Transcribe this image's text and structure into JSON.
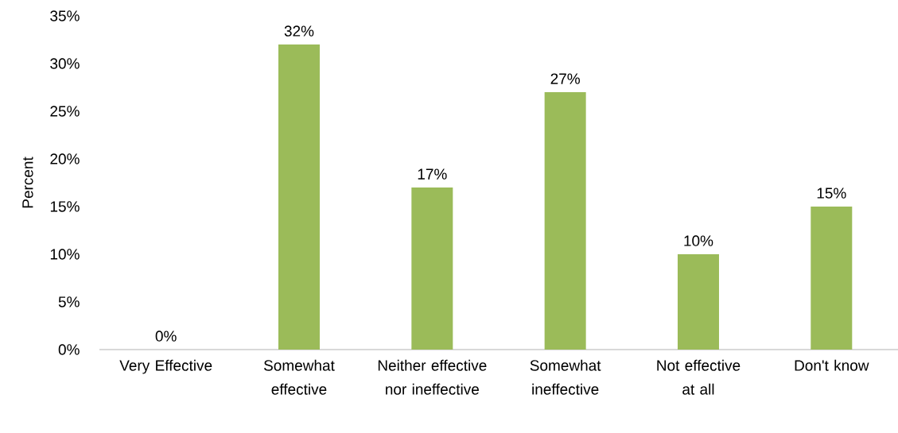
{
  "chart_data": {
    "type": "bar",
    "ylabel": "Percent",
    "categories": [
      "Very Effective",
      "Somewhat effective",
      "Neither effective nor ineffective",
      "Somewhat ineffective",
      "Not effective at all",
      "Don't know"
    ],
    "values": [
      0,
      32,
      17,
      27,
      10,
      15
    ],
    "value_labels": [
      "0%",
      "32%",
      "17%",
      "27%",
      "10%",
      "15%"
    ],
    "color": "#9bbb59",
    "ylim": [
      0,
      35
    ],
    "yticks": [
      {
        "value": 0,
        "label": "0%"
      },
      {
        "value": 5,
        "label": "5%"
      },
      {
        "value": 10,
        "label": "10%"
      },
      {
        "value": 15,
        "label": "15%"
      },
      {
        "value": 20,
        "label": "20%"
      },
      {
        "value": 25,
        "label": "25%"
      },
      {
        "value": 30,
        "label": "30%"
      },
      {
        "value": 35,
        "label": "35%"
      }
    ],
    "grid": false
  }
}
